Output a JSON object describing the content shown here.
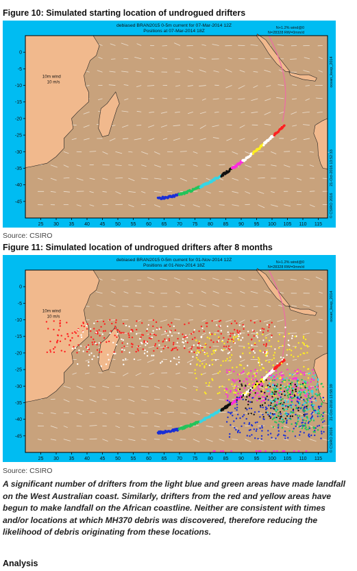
{
  "figures": [
    {
      "title": "Figure 10: Simulated starting location of undrogued drifters",
      "header_line1": "debiased BRAN2015 0-5m current for 07-Mar-2014 12Z",
      "header_line2": "Positions at 07-Mar-2014 18Z",
      "corner_line1": "N+1.2% wind@0",
      "corner_line2": "N=28328 RW=0mm/d",
      "wind_label_line1": "10m wind",
      "wind_label_line2": "10 m/s",
      "side_label_top": "ocean_keep_2014",
      "side_label_mid": "21-Oct-2016 13:52:33",
      "side_label_bottom": "© CSIRO 2016",
      "x_ticks": [
        "25",
        "30",
        "35",
        "40",
        "45",
        "50",
        "55",
        "60",
        "65",
        "70",
        "75",
        "80",
        "85",
        "90",
        "95",
        "100",
        "105",
        "110",
        "115"
      ],
      "y_ticks": [
        "0",
        "-5",
        "-10",
        "-15",
        "-20",
        "-25",
        "-30",
        "-35",
        "-40",
        "-45"
      ],
      "source": "Source: CSIRO"
    },
    {
      "title": "Figure 11: Simulated location of undrogued drifters after 8 months",
      "header_line1": "debiased BRAN2015 0-5m current for 01-Nov-2014 12Z",
      "header_line2": "Positions at 01-Nov-2014 18Z",
      "corner_line1": "N+1.2% wind@0",
      "corner_line2": "N=28328 RW=0mm/d",
      "wind_label_line1": "10m wind",
      "wind_label_line2": "10 m/s",
      "side_label_top": "ocean_keep_2014",
      "side_label_mid": "21-Oct-2016 13:58:39",
      "side_label_bottom": "© CSIRO 2016",
      "x_ticks": [
        "25",
        "30",
        "35",
        "40",
        "45",
        "50",
        "55",
        "60",
        "65",
        "70",
        "75",
        "80",
        "85",
        "90",
        "95",
        "100",
        "105",
        "110",
        "115"
      ],
      "y_ticks": [
        "0",
        "-5",
        "-10",
        "-15",
        "-20",
        "-25",
        "-30",
        "-35",
        "-40",
        "-45"
      ],
      "source": "Source: CSIRO"
    }
  ],
  "caption": "A significant number of drifters from the light blue and green areas have made landfall on the West Australian coast. Similarly, drifters from the red and yellow areas have begun to make landfall on the African coastline. Neither are consistent with times and/or locations at which MH370 debris was discovered, therefore reducing the likelihood of debris originating from these locations.",
  "next_section": "Analysis",
  "colors": {
    "ocean": "#c8a27c",
    "land": "#f1b98d",
    "frame": "#00bcf2",
    "track": "#ee6aa7"
  },
  "drifter_arc_colors": [
    "#1a2fd6",
    "#1a2fd6",
    "#22c45a",
    "#22c45a",
    "#35d6e6",
    "#35d6e6",
    "#111111",
    "#ff2be0",
    "#ffffff",
    "#ffef20",
    "#ffffff",
    "#ff2020"
  ],
  "drifter_spread_colors": [
    "#ff2020",
    "#ffffff",
    "#ffef20",
    "#ff2be0",
    "#111111",
    "#1a2fd6",
    "#22c45a",
    "#35d6e6"
  ]
}
